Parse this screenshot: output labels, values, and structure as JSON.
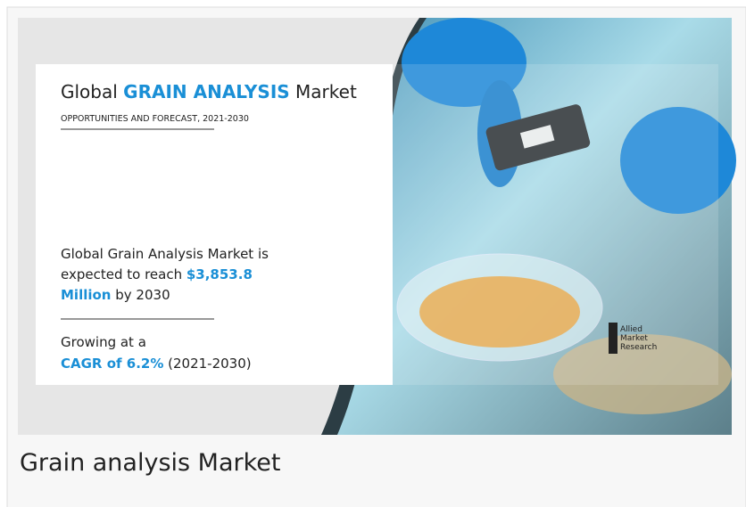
{
  "image": {
    "title_prefix": "Global",
    "title_highlight": "GRAIN ANALYSIS",
    "title_suffix": "Market",
    "subtitle": "OPPORTUNITIES AND FORECAST, 2021-2030",
    "reach_line1": "Global Grain Analysis Market is",
    "reach_line2": "expected to reach",
    "reach_value_part1": "$3,853.8",
    "reach_value_part2": "Million",
    "reach_suffix": "by 2030",
    "growth_text": "Growing at a",
    "growth_value": "CAGR of 6.2%",
    "growth_period": "(2021-2030)",
    "logo": [
      "Allied",
      "Market",
      "Research"
    ]
  },
  "caption": "Grain analysis Market"
}
